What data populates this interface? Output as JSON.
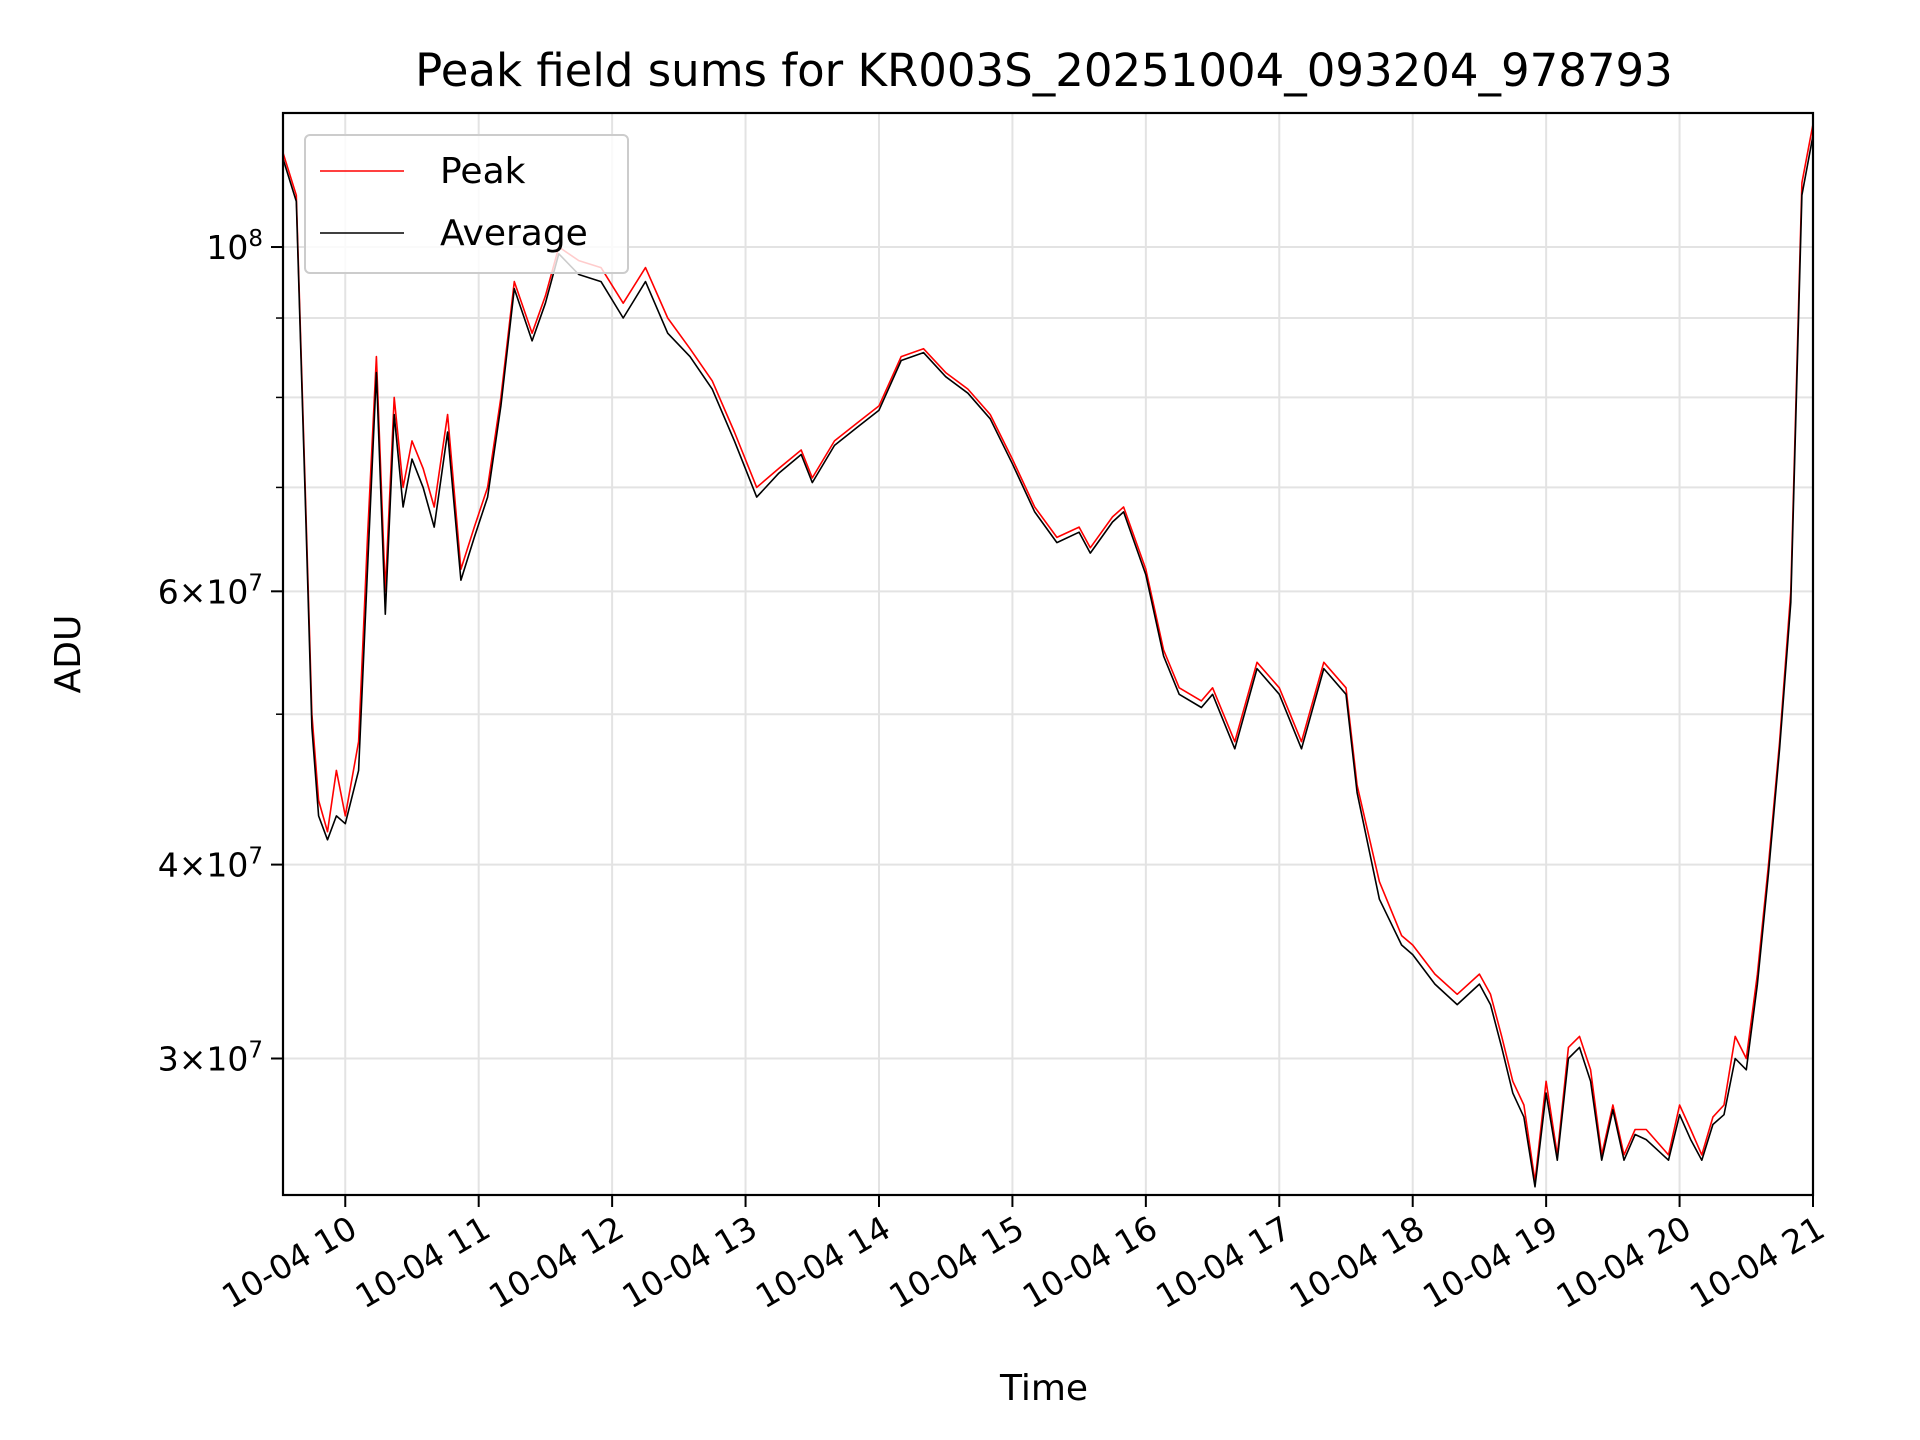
{
  "chart_data": {
    "type": "line",
    "title": "Peak field sums for KR003S_20251004_093204_978793",
    "xlabel": "Time",
    "ylabel": "ADU",
    "x_scale": "time",
    "y_scale": "log",
    "xlim": [
      "2025-10-04 09:32",
      "2025-10-04 21:00"
    ],
    "ylim": [
      24500000,
      122000000
    ],
    "grid": true,
    "legend": "top-left",
    "x_ticks": [
      {
        "value": "2025-10-04 10:00",
        "label": "10-04 10"
      },
      {
        "value": "2025-10-04 11:00",
        "label": "10-04 11"
      },
      {
        "value": "2025-10-04 12:00",
        "label": "10-04 12"
      },
      {
        "value": "2025-10-04 13:00",
        "label": "10-04 13"
      },
      {
        "value": "2025-10-04 14:00",
        "label": "10-04 14"
      },
      {
        "value": "2025-10-04 15:00",
        "label": "10-04 15"
      },
      {
        "value": "2025-10-04 16:00",
        "label": "10-04 16"
      },
      {
        "value": "2025-10-04 17:00",
        "label": "10-04 17"
      },
      {
        "value": "2025-10-04 18:00",
        "label": "10-04 18"
      },
      {
        "value": "2025-10-04 19:00",
        "label": "10-04 19"
      },
      {
        "value": "2025-10-04 20:00",
        "label": "10-04 20"
      },
      {
        "value": "2025-10-04 21:00",
        "label": "10-04 21"
      }
    ],
    "y_major_ticks": [
      {
        "value": 30000000,
        "mantissa": "3",
        "exponent": "7"
      },
      {
        "value": 40000000,
        "mantissa": "4",
        "exponent": "7"
      },
      {
        "value": 60000000,
        "mantissa": "6",
        "exponent": "7"
      },
      {
        "value": 100000000,
        "mantissa": "",
        "exponent": "8"
      }
    ],
    "y_minor_ticks": [
      50000000,
      70000000,
      80000000,
      90000000
    ],
    "tick_base": "10",
    "tick_times": "×",
    "x": [
      "2025-10-04 09:32",
      "2025-10-04 09:38",
      "2025-10-04 09:42",
      "2025-10-04 09:45",
      "2025-10-04 09:48",
      "2025-10-04 09:52",
      "2025-10-04 09:56",
      "2025-10-04 10:00",
      "2025-10-04 10:06",
      "2025-10-04 10:10",
      "2025-10-04 10:14",
      "2025-10-04 10:18",
      "2025-10-04 10:22",
      "2025-10-04 10:26",
      "2025-10-04 10:30",
      "2025-10-04 10:35",
      "2025-10-04 10:40",
      "2025-10-04 10:46",
      "2025-10-04 10:52",
      "2025-10-04 10:58",
      "2025-10-04 11:04",
      "2025-10-04 11:10",
      "2025-10-04 11:16",
      "2025-10-04 11:24",
      "2025-10-04 11:30",
      "2025-10-04 11:36",
      "2025-10-04 11:45",
      "2025-10-04 11:55",
      "2025-10-04 12:05",
      "2025-10-04 12:15",
      "2025-10-04 12:25",
      "2025-10-04 12:35",
      "2025-10-04 12:45",
      "2025-10-04 12:55",
      "2025-10-04 13:05",
      "2025-10-04 13:15",
      "2025-10-04 13:25",
      "2025-10-04 13:30",
      "2025-10-04 13:40",
      "2025-10-04 13:50",
      "2025-10-04 14:00",
      "2025-10-04 14:10",
      "2025-10-04 14:20",
      "2025-10-04 14:30",
      "2025-10-04 14:40",
      "2025-10-04 14:50",
      "2025-10-04 15:00",
      "2025-10-04 15:10",
      "2025-10-04 15:20",
      "2025-10-04 15:30",
      "2025-10-04 15:35",
      "2025-10-04 15:45",
      "2025-10-04 15:50",
      "2025-10-04 16:00",
      "2025-10-04 16:08",
      "2025-10-04 16:15",
      "2025-10-04 16:25",
      "2025-10-04 16:30",
      "2025-10-04 16:40",
      "2025-10-04 16:50",
      "2025-10-04 17:00",
      "2025-10-04 17:10",
      "2025-10-04 17:20",
      "2025-10-04 17:30",
      "2025-10-04 17:35",
      "2025-10-04 17:45",
      "2025-10-04 17:55",
      "2025-10-04 18:00",
      "2025-10-04 18:10",
      "2025-10-04 18:20",
      "2025-10-04 18:30",
      "2025-10-04 18:35",
      "2025-10-04 18:40",
      "2025-10-04 18:45",
      "2025-10-04 18:50",
      "2025-10-04 18:55",
      "2025-10-04 19:00",
      "2025-10-04 19:05",
      "2025-10-04 19:10",
      "2025-10-04 19:15",
      "2025-10-04 19:20",
      "2025-10-04 19:25",
      "2025-10-04 19:30",
      "2025-10-04 19:35",
      "2025-10-04 19:40",
      "2025-10-04 19:45",
      "2025-10-04 19:50",
      "2025-10-04 19:55",
      "2025-10-04 20:00",
      "2025-10-04 20:05",
      "2025-10-04 20:10",
      "2025-10-04 20:15",
      "2025-10-04 20:20",
      "2025-10-04 20:25",
      "2025-10-04 20:30",
      "2025-10-04 20:35",
      "2025-10-04 20:40",
      "2025-10-04 20:45",
      "2025-10-04 20:50",
      "2025-10-04 20:55",
      "2025-10-04 21:00"
    ],
    "series": [
      {
        "name": "Peak",
        "color": "#ff0000",
        "values": [
          115000000,
          108000000,
          70000000,
          50000000,
          44000000,
          42000000,
          46000000,
          43000000,
          48000000,
          65000000,
          85000000,
          60000000,
          80000000,
          70000000,
          75000000,
          72000000,
          68000000,
          78000000,
          62000000,
          66000000,
          70000000,
          80000000,
          95000000,
          88000000,
          93000000,
          100000000,
          98000000,
          97000000,
          92000000,
          97000000,
          90000000,
          86000000,
          82000000,
          76000000,
          70000000,
          72000000,
          74000000,
          71000000,
          75000000,
          77000000,
          79000000,
          85000000,
          86000000,
          83000000,
          81000000,
          78000000,
          73000000,
          68000000,
          65000000,
          66000000,
          64000000,
          67000000,
          68000000,
          62000000,
          55000000,
          52000000,
          51000000,
          52000000,
          48000000,
          54000000,
          52000000,
          48000000,
          54000000,
          52000000,
          45000000,
          39000000,
          36000000,
          35500000,
          34000000,
          33000000,
          34000000,
          33000000,
          31000000,
          29000000,
          28000000,
          25000000,
          29000000,
          26000000,
          30500000,
          31000000,
          29500000,
          26000000,
          28000000,
          26000000,
          27000000,
          27000000,
          26500000,
          26000000,
          28000000,
          27000000,
          26000000,
          27500000,
          28000000,
          31000000,
          30000000,
          34000000,
          40000000,
          48000000,
          60000000,
          110000000,
          120000000
        ]
      },
      {
        "name": "Average",
        "color": "#000000",
        "values": [
          114000000,
          107000000,
          69000000,
          49000000,
          43000000,
          41500000,
          43000000,
          42500000,
          46000000,
          62000000,
          83000000,
          58000000,
          78000000,
          68000000,
          73000000,
          70000000,
          66000000,
          76000000,
          61000000,
          65000000,
          69000000,
          79000000,
          94000000,
          87000000,
          92000000,
          99000000,
          96000000,
          95000000,
          90000000,
          95000000,
          88000000,
          85000000,
          81000000,
          75000000,
          69000000,
          71500000,
          73500000,
          70500000,
          74500000,
          76500000,
          78500000,
          84500000,
          85500000,
          82500000,
          80500000,
          77500000,
          72500000,
          67500000,
          64500000,
          65500000,
          63500000,
          66500000,
          67500000,
          61500000,
          54500000,
          51500000,
          50500000,
          51500000,
          47500000,
          53500000,
          51500000,
          47500000,
          53500000,
          51500000,
          44500000,
          38000000,
          35500000,
          35000000,
          33500000,
          32500000,
          33500000,
          32500000,
          30500000,
          28500000,
          27500000,
          24800000,
          28500000,
          25800000,
          30000000,
          30500000,
          29000000,
          25800000,
          27800000,
          25800000,
          26800000,
          26600000,
          26200000,
          25800000,
          27600000,
          26600000,
          25800000,
          27200000,
          27600000,
          30000000,
          29500000,
          33500000,
          39500000,
          47500000,
          59000000,
          108000000,
          118000000
        ]
      }
    ]
  }
}
